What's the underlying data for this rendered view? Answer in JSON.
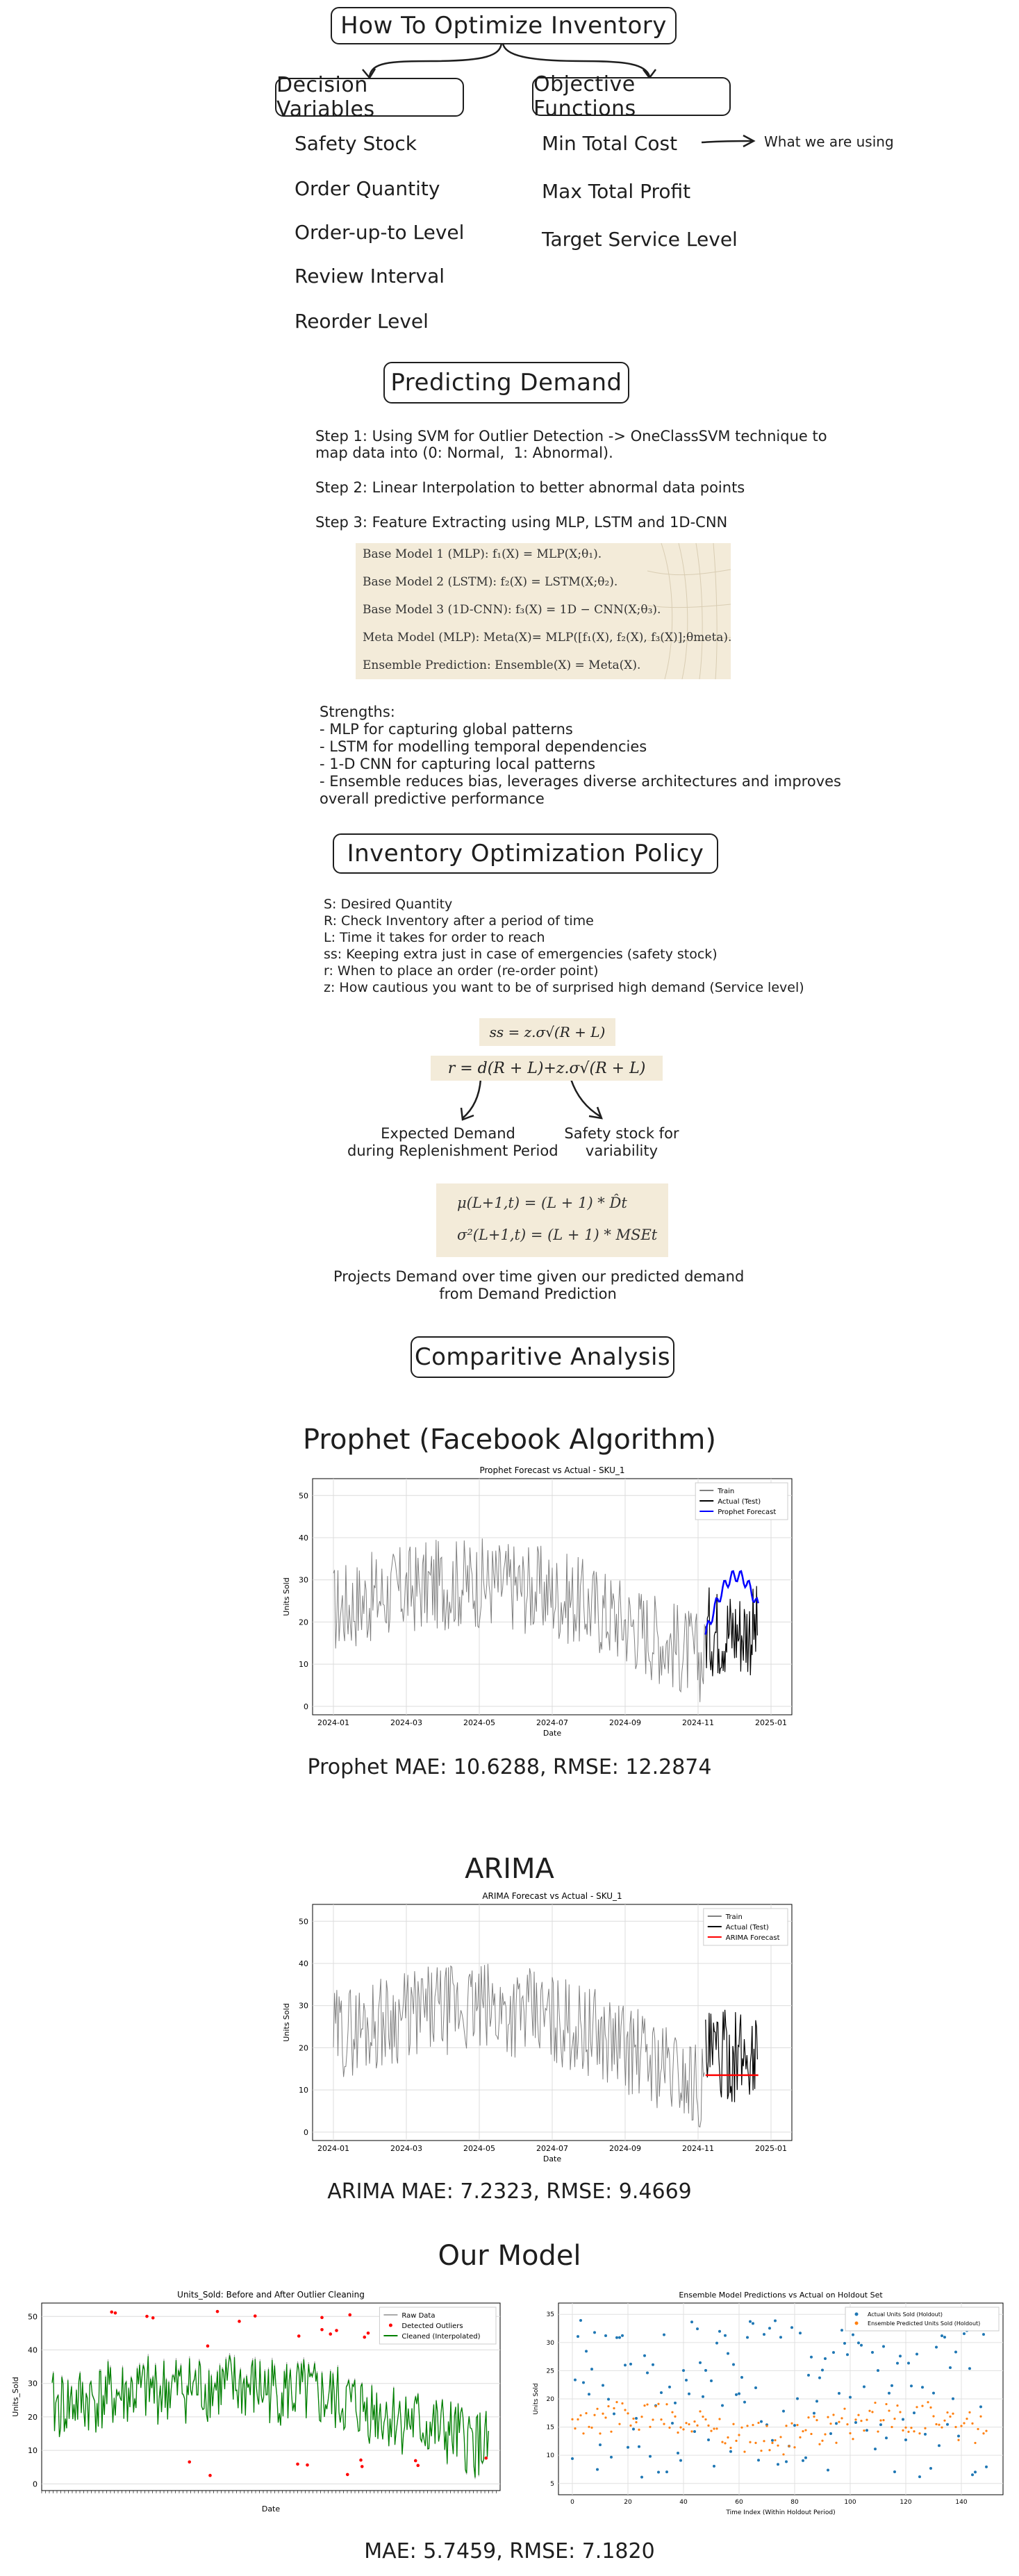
{
  "title": "How To Optimize Inventory",
  "decision_variables": {
    "header": "Decision Variables",
    "items": [
      "Safety Stock",
      "Order Quantity",
      "Order-up-to Level",
      "Review Interval",
      "Reorder Level"
    ]
  },
  "objective_functions": {
    "header": "Objective Functions",
    "items": [
      "Min Total Cost",
      "Max Total Profit",
      "Target Service Level"
    ],
    "note": "What we are using"
  },
  "predicting_demand": {
    "header": "Predicting Demand",
    "step1_a": "Step 1: Using SVM for Outlier Detection -> OneClassSVM technique to",
    "step1_b": "map data into (0: Normal,  1: Abnormal).",
    "step2": "Step 2: Linear Interpolation to better abnormal data points",
    "step3": "Step 3: Feature Extracting using MLP, LSTM and 1D-CNN",
    "models": [
      "Base Model 1 (MLP): f₁(X) = MLP(X;θ₁).",
      "Base Model 2 (LSTM): f₂(X) = LSTM(X;θ₂).",
      "Base Model 3 (1D-CNN): f₃(X) = 1D − CNN(X;θ₃).",
      "Meta Model (MLP): Meta(X)= MLP([f₁(X), f₂(X), f₃(X)];θmeta).",
      "Ensemble Prediction: Ensemble(X) = Meta(X)."
    ],
    "strengths": [
      "Strengths:",
      "- MLP for capturing global patterns",
      "- LSTM for modelling temporal dependencies",
      "- 1-D CNN for capturing local patterns",
      "- Ensemble reduces bias, leverages diverse architectures and improves",
      "overall predictive performance"
    ]
  },
  "policy": {
    "header": "Inventory Optimization Policy",
    "defs": [
      "S: Desired Quantity",
      "R: Check Inventory after a period of time",
      "L: Time it takes for order to reach",
      "ss: Keeping extra just in case of emergencies (safety stock)",
      "r: When to place an order (re-order point)",
      "z: How cautious you want to be of surprised high demand (Service level)"
    ],
    "eq_ss": "ss = z.σ√(R + L)",
    "eq_r": "r = d(R + L)+z.σ√(R + L)",
    "left_label": "Expected Demand\nduring Replenishment Period",
    "right_label": "Safety stock for\nvariability",
    "eq_mu": "μ(L+1,t) = (L + 1) * D̂t",
    "eq_sigma": "σ²(L+1,t) = (L + 1) * MSEt",
    "projects": "Projects Demand over time given our predicted demand\nfrom Demand Prediction"
  },
  "comparative": {
    "header": "Comparitive Analysis",
    "prophet_title": "Prophet (Facebook Algorithm)",
    "prophet_metrics": "Prophet MAE: 10.6288, RMSE: 12.2874",
    "arima_title": "ARIMA",
    "arima_metrics": "ARIMA MAE: 7.2323, RMSE: 9.4669",
    "ours_title": "Our Model",
    "ours_metrics": "MAE: 5.7459, RMSE: 7.1820"
  },
  "chart_data": [
    {
      "type": "line",
      "title": "Prophet Forecast vs Actual - SKU_1",
      "xlabel": "Date",
      "ylabel": "Units Sold",
      "x_ticks": [
        "2024-01",
        "2024-03",
        "2024-05",
        "2024-07",
        "2024-09",
        "2024-11",
        "2025-01"
      ],
      "y_ticks": [
        "0",
        "10",
        "20",
        "30",
        "40",
        "50"
      ],
      "ylim": [
        -2,
        54
      ],
      "legend": "top-right",
      "grid": true,
      "series": [
        {
          "name": "Train",
          "color": "#808080"
        },
        {
          "name": "Actual (Test)",
          "color": "#000000"
        },
        {
          "name": "Prophet Forecast",
          "color": "#0000ff"
        }
      ]
    },
    {
      "type": "line",
      "title": "ARIMA Forecast vs Actual - SKU_1",
      "xlabel": "Date",
      "ylabel": "Units Sold",
      "x_ticks": [
        "2024-01",
        "2024-03",
        "2024-05",
        "2024-07",
        "2024-09",
        "2024-11",
        "2025-01"
      ],
      "y_ticks": [
        "0",
        "10",
        "20",
        "30",
        "40",
        "50"
      ],
      "ylim": [
        -2,
        54
      ],
      "legend": "top-right",
      "grid": true,
      "series": [
        {
          "name": "Train",
          "color": "#808080"
        },
        {
          "name": "Actual (Test)",
          "color": "#000000"
        },
        {
          "name": "ARIMA Forecast",
          "color": "#ff0000"
        }
      ]
    },
    {
      "type": "line",
      "title": "Units_Sold: Before and After Outlier Cleaning",
      "xlabel": "Date",
      "ylabel": "Units_Sold",
      "y_ticks": [
        "0",
        "10",
        "20",
        "30",
        "40",
        "50"
      ],
      "ylim": [
        -2,
        54
      ],
      "legend": "top-right",
      "grid": true,
      "series": [
        {
          "name": "Raw Data",
          "color": "#aaaaaa"
        },
        {
          "name": "Detected Outliers",
          "color": "#ff0000"
        },
        {
          "name": "Cleaned (Interpolated)",
          "color": "#008000"
        }
      ]
    },
    {
      "type": "scatter",
      "title": "Ensemble Model Predictions vs Actual on Holdout Set",
      "xlabel": "Time Index (Within Holdout Period)",
      "ylabel": "Units Sold",
      "x_ticks": [
        "0",
        "20",
        "40",
        "60",
        "80",
        "100",
        "120",
        "140"
      ],
      "y_ticks": [
        "5",
        "10",
        "15",
        "20",
        "25",
        "30",
        "35"
      ],
      "ylim": [
        3,
        37
      ],
      "xlim": [
        -5,
        155
      ],
      "legend": "top-right",
      "grid": true,
      "series": [
        {
          "name": "Actual Units Sold (Holdout)",
          "color": "#1f77b4"
        },
        {
          "name": "Ensemble Predicted Units Sold (Holdout)",
          "color": "#ff7f0e"
        }
      ]
    }
  ]
}
